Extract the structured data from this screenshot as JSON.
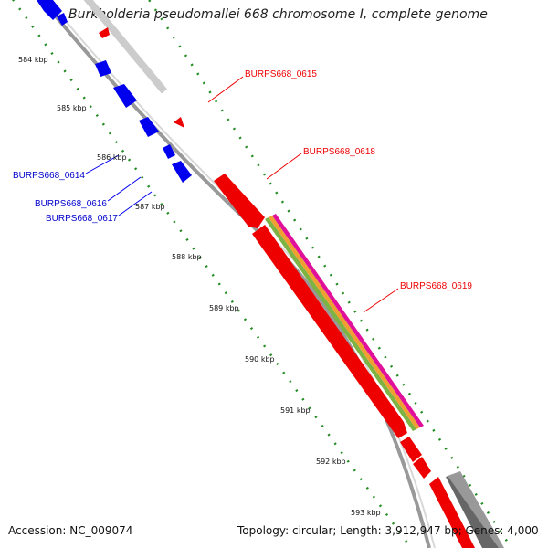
{
  "title": "Burkholderia pseudomallei 668 chromosome I, complete genome",
  "accession_label": "Accession: NC_009074",
  "topology_label": "Topology: circular; Length: 3,912,947 bp; Genes: 4,000",
  "colors": {
    "forward_gene": "#ee0000",
    "reverse_gene": "#0000ee",
    "backbone": "#999999",
    "tick_dots": "#228b22",
    "other_feature": "#777777",
    "feature_band_green": "#7cb342",
    "feature_band_orange": "#f0a030",
    "feature_band_magenta": "#e0109a"
  },
  "scale_labels": [
    "584 kbp",
    "585 kbp",
    "586 kbp",
    "587 kbp",
    "588 kbp",
    "589 kbp",
    "590 kbp",
    "591 kbp",
    "592 kbp",
    "593 kbp"
  ],
  "gene_labels_forward": [
    "BURPS668_0615",
    "BURPS668_0618",
    "BURPS668_0619"
  ],
  "gene_labels_reverse": [
    "BURPS668_0614",
    "BURPS668_0616",
    "BURPS668_0617"
  ]
}
